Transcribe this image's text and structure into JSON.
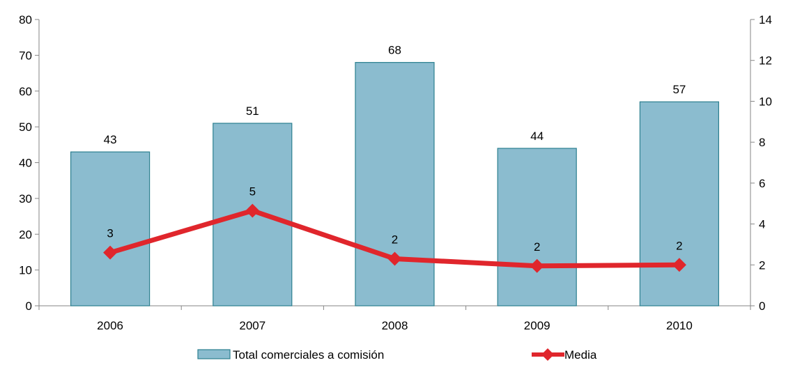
{
  "chart_data": {
    "type": "bar",
    "categories": [
      "2006",
      "2007",
      "2008",
      "2009",
      "2010"
    ],
    "series": [
      {
        "name": "Total comerciales a comisión",
        "type": "bar",
        "axis": "left",
        "values": [
          43,
          51,
          68,
          44,
          57
        ],
        "labels": [
          "43",
          "51",
          "68",
          "44",
          "57"
        ],
        "color": "#8bbccf",
        "border_color": "#2b7f8f"
      },
      {
        "name": "Media",
        "type": "line",
        "axis": "right",
        "marker": "diamond",
        "values": [
          2.6,
          4.65,
          2.3,
          1.95,
          2.0
        ],
        "labels": [
          "3",
          "5",
          "2",
          "2",
          "2"
        ],
        "color": "#e0262c"
      }
    ],
    "y_left": {
      "min": 0,
      "max": 80,
      "step": 10,
      "ticks": [
        "0",
        "10",
        "20",
        "30",
        "40",
        "50",
        "60",
        "70",
        "80"
      ]
    },
    "y_right": {
      "min": 0,
      "max": 14,
      "step": 2,
      "ticks": [
        "0",
        "2",
        "4",
        "6",
        "8",
        "10",
        "12",
        "14"
      ]
    },
    "grid": false,
    "legend_position": "bottom"
  }
}
